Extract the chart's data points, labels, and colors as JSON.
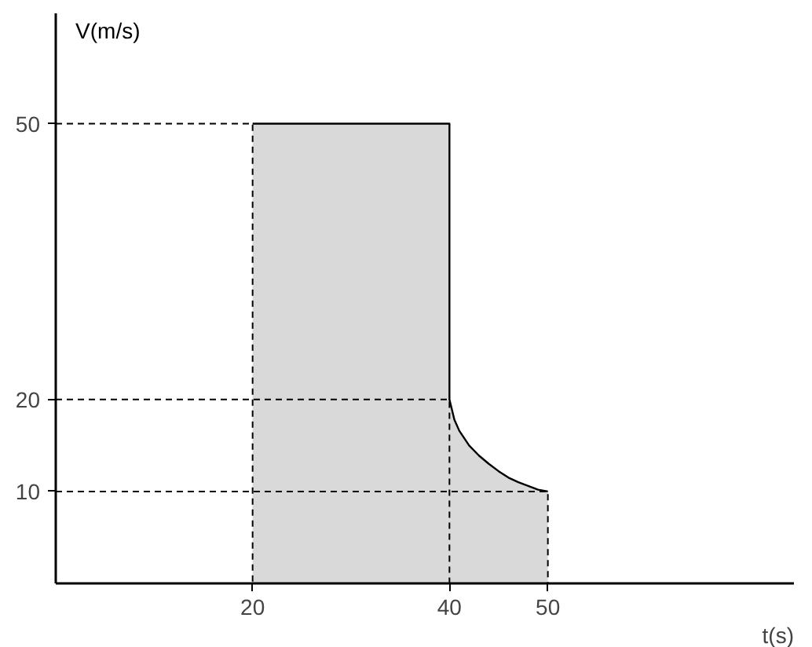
{
  "chart_data": {
    "type": "area",
    "xlabel": "t(s)",
    "ylabel": "V(m/s)",
    "xlim": [
      0,
      75
    ],
    "ylim": [
      0,
      62
    ],
    "xticks": [
      20,
      40,
      50
    ],
    "yticks": [
      10,
      20,
      50
    ],
    "grid": false,
    "series": [
      {
        "color": "#d9d9d9",
        "x": [
          20,
          40,
          40,
          40.5,
          41,
          42,
          43,
          44,
          45,
          46,
          47,
          48,
          49,
          50
        ],
        "values": [
          50,
          50,
          20,
          17.8,
          16.6,
          15,
          13.9,
          13,
          12.2,
          11.5,
          11,
          10.6,
          10.2,
          10
        ]
      },
      {
        "type": "line",
        "color": "#000000",
        "line_style": "dashed",
        "x": [
          0,
          20,
          20
        ],
        "values": [
          50,
          50,
          0
        ]
      },
      {
        "type": "line",
        "color": "#000000",
        "line_style": "dashed",
        "x": [
          0,
          40,
          40
        ],
        "values": [
          20,
          20,
          0
        ]
      },
      {
        "type": "line",
        "color": "#000000",
        "line_style": "dashed",
        "x": [
          0,
          50,
          50
        ],
        "values": [
          10,
          10,
          0
        ]
      }
    ]
  }
}
